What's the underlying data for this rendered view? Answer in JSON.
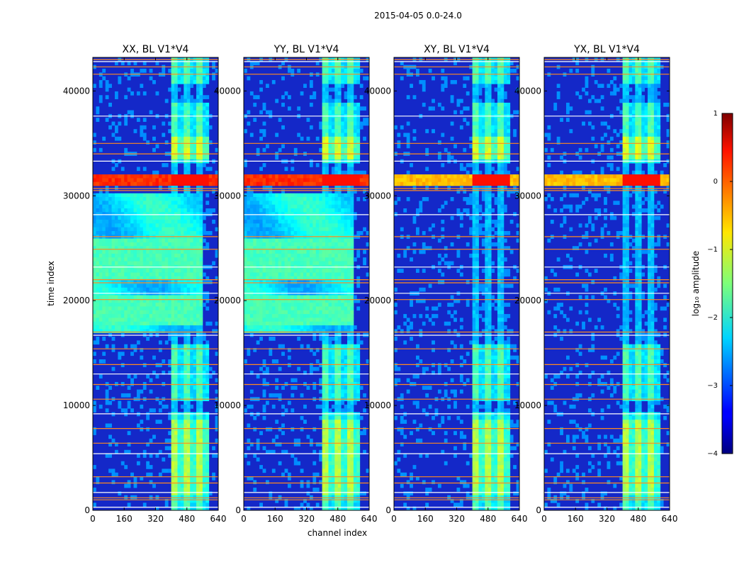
{
  "figure": {
    "suptitle": "2015-04-05 0.0-24.0"
  },
  "chart_data": {
    "type": "heatmap",
    "xlabel": "channel index",
    "ylabel": "time index",
    "xlim": [
      0,
      640
    ],
    "ylim": [
      0,
      43200
    ],
    "xticks": [
      0,
      160,
      320,
      480,
      640
    ],
    "yticks": [
      0,
      10000,
      20000,
      30000,
      40000
    ],
    "panels": [
      {
        "title": "XX, BL V1*V4",
        "pol": "XX"
      },
      {
        "title": "YY, BL V1*V4",
        "pol": "YY"
      },
      {
        "title": "XY, BL V1*V4",
        "pol": "XY"
      },
      {
        "title": "YX, BL V1*V4",
        "pol": "YX"
      }
    ],
    "colorbar": {
      "label": "log₁₀ amplitude",
      "range": [
        -4,
        1
      ],
      "ticks": [
        1,
        0,
        -1,
        -2,
        -3,
        -4
      ],
      "tick_labels": [
        "1",
        "0",
        "−1",
        "−2",
        "−3",
        "−4"
      ],
      "colormap": "jet"
    },
    "features": {
      "rfi_channel_band": [
        400,
        590
      ],
      "strong_time_band": [
        30900,
        32200
      ],
      "flagged_rows": [
        300,
        1000,
        1200,
        1700,
        2600,
        3200,
        5400,
        6400,
        7800,
        9200,
        10600,
        12000,
        13000,
        13900,
        15400,
        16700,
        17000,
        20100,
        20700,
        21700,
        22000,
        23200,
        24900,
        26100,
        28200,
        30500,
        30700,
        33300,
        34000,
        35000,
        37600,
        41600,
        42300,
        42800,
        43000
      ],
      "colors": {
        "background_low": "#1428c8",
        "flag_line": "#ff8a1e",
        "flag_line_white": "#ffffff",
        "hot": "#c80000"
      }
    }
  }
}
